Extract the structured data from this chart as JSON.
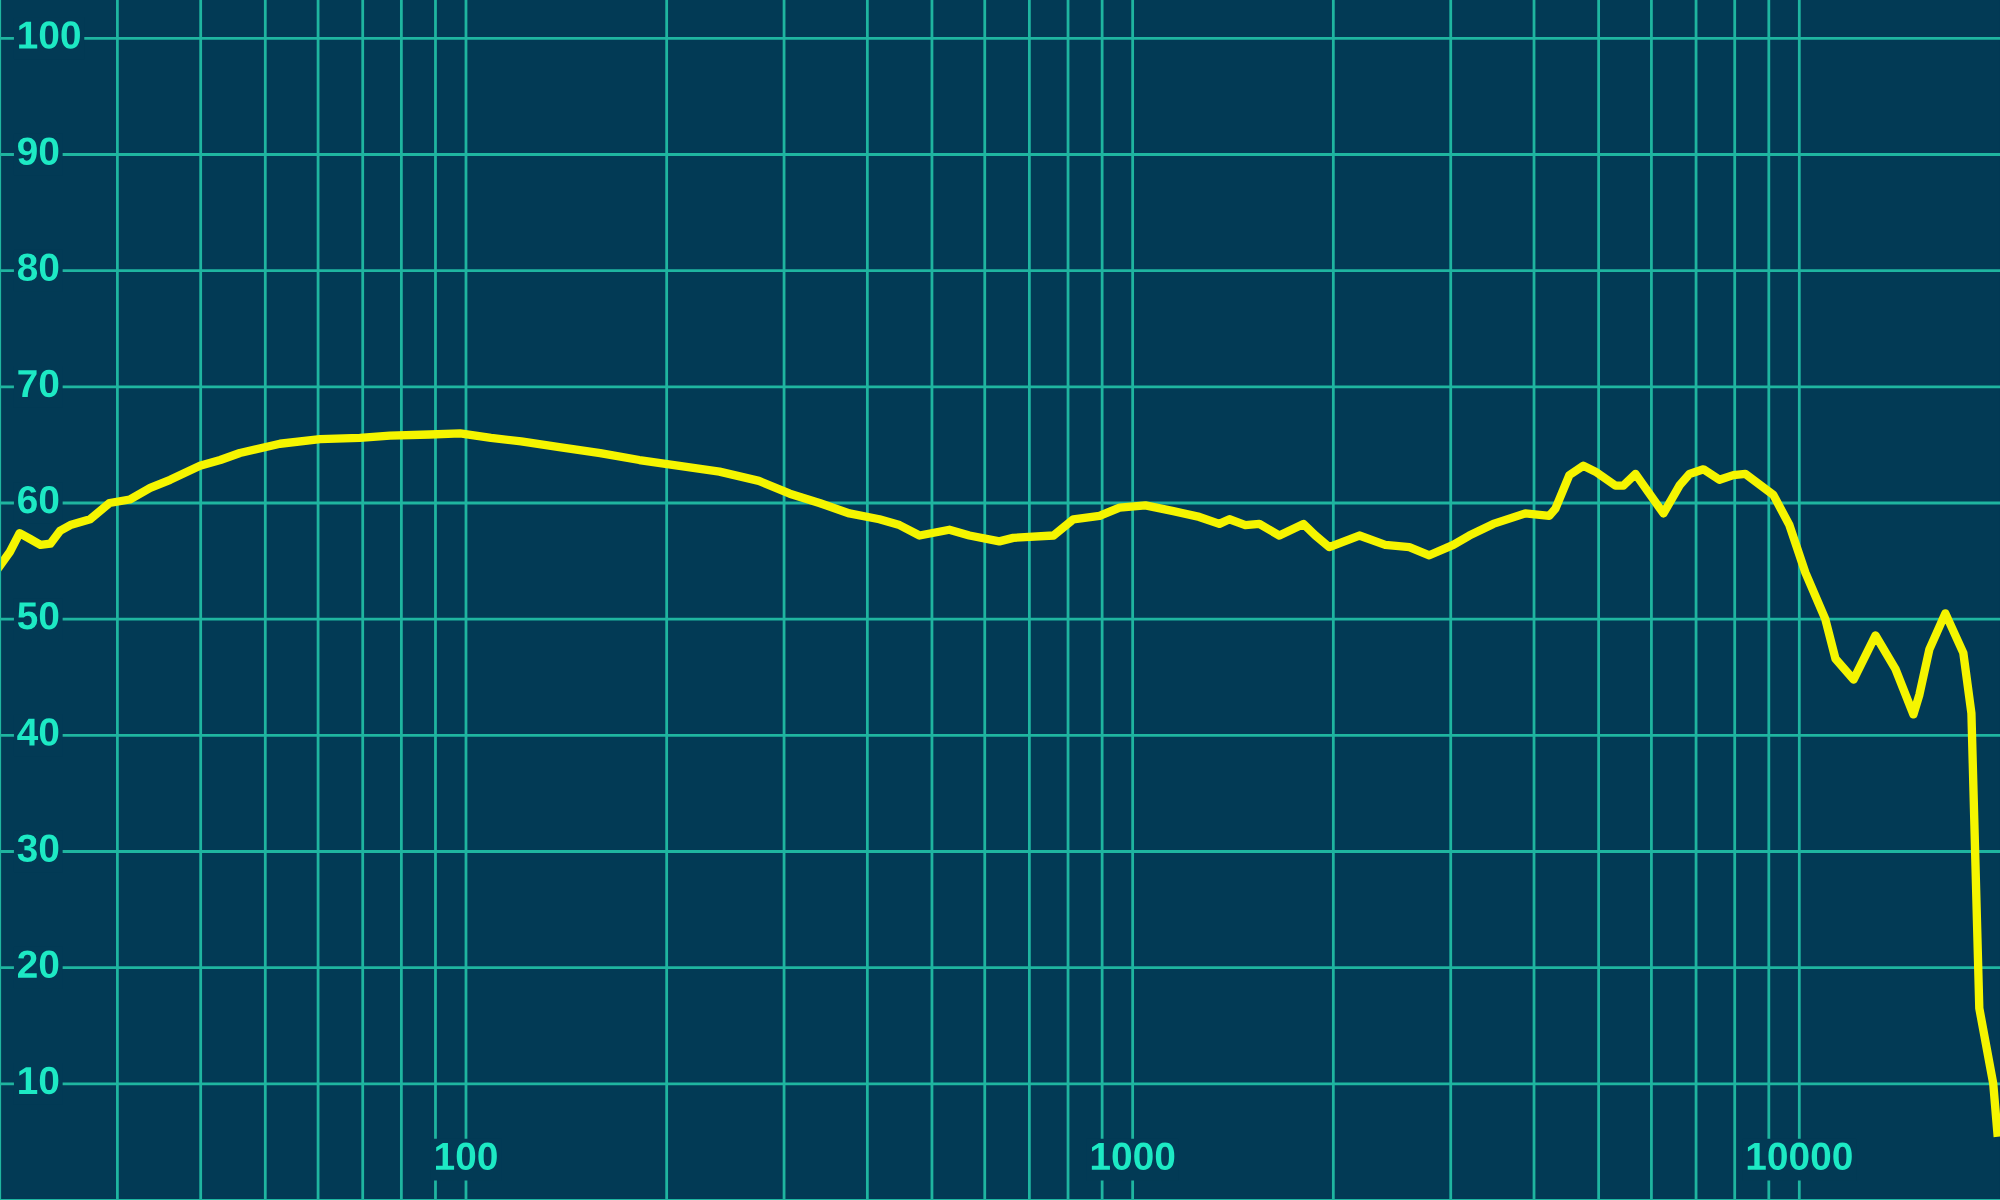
{
  "chart_data": {
    "type": "line",
    "log": "x",
    "grid": true,
    "marker": "none",
    "line_style": "solid",
    "xlim": [
      20,
      20000
    ],
    "ylim": [
      0,
      103.3
    ],
    "xticks": [
      {
        "value": 30,
        "label": null
      },
      {
        "value": 40,
        "label": null
      },
      {
        "value": 50,
        "label": null
      },
      {
        "value": 60,
        "label": null
      },
      {
        "value": 70,
        "label": null
      },
      {
        "value": 80,
        "label": null
      },
      {
        "value": 90,
        "label": null
      },
      100,
      {
        "value": 200,
        "label": null
      },
      {
        "value": 300,
        "label": null
      },
      {
        "value": 400,
        "label": null
      },
      {
        "value": 500,
        "label": null
      },
      {
        "value": 600,
        "label": null
      },
      {
        "value": 700,
        "label": null
      },
      {
        "value": 800,
        "label": null
      },
      {
        "value": 900,
        "label": null
      },
      1000,
      {
        "value": 2000,
        "label": null
      },
      {
        "value": 3000,
        "label": null
      },
      {
        "value": 4000,
        "label": null
      },
      {
        "value": 5000,
        "label": null
      },
      {
        "value": 6000,
        "label": null
      },
      {
        "value": 7000,
        "label": null
      },
      {
        "value": 8000,
        "label": null
      },
      {
        "value": 9000,
        "label": null
      },
      10000
    ],
    "yticks": [
      10,
      20,
      30,
      40,
      50,
      60,
      70,
      80,
      90,
      100
    ],
    "x": [
      20.0,
      20.7,
      21.4,
      22.2,
      23.0,
      23.8,
      24.6,
      25.5,
      27.3,
      29.2,
      31.3,
      33.6,
      36.0,
      39.9,
      42.8,
      45.8,
      52.6,
      60.4,
      69.3,
      76.9,
      88.3,
      98.0,
      109,
      121,
      138,
      159,
      182,
      209,
      240,
      275,
      306,
      339,
      376,
      417,
      447,
      479,
      531,
      569,
      631,
      662,
      761,
      815,
      892,
      956,
      1045,
      1151,
      1259,
      1349,
      1397,
      1476,
      1549,
      1660,
      1804,
      1880,
      1972,
      2188,
      2393,
      2600,
      2786,
      3027,
      3199,
      3475,
      3881,
      4217,
      4306,
      4519,
      4743,
      4946,
      5300,
      5448,
      5678,
      6255,
      6610,
      6842,
      7182,
      7590,
      7962,
      8299,
      9142,
      9663,
      10212,
      10940,
      11330,
      12060,
      13010,
      13940,
      14830,
      15140,
      15670,
      16560,
      17620,
      18120,
      18620,
      19540,
      19820
    ],
    "series": [
      {
        "color": "#f5f500",
        "values": [
          54.6,
          55.8,
          57.4,
          56.9,
          56.4,
          56.5,
          57.6,
          58.1,
          58.6,
          60.0,
          60.3,
          61.3,
          62.0,
          63.2,
          63.7,
          64.3,
          65.1,
          65.5,
          65.6,
          65.8,
          65.9,
          66.0,
          65.6,
          65.3,
          64.8,
          64.3,
          63.7,
          63.2,
          62.7,
          61.9,
          60.8,
          60.0,
          59.1,
          58.6,
          58.1,
          57.2,
          57.7,
          57.2,
          56.7,
          57.0,
          57.2,
          58.6,
          58.9,
          59.6,
          59.8,
          59.3,
          58.8,
          58.2,
          58.6,
          58.1,
          58.2,
          57.2,
          58.2,
          57.2,
          56.2,
          57.2,
          56.4,
          56.2,
          55.5,
          56.4,
          57.2,
          58.2,
          59.1,
          58.9,
          59.5,
          62.4,
          63.2,
          62.7,
          61.5,
          61.5,
          62.5,
          59.1,
          61.5,
          62.5,
          62.9,
          62.0,
          62.4,
          62.5,
          60.7,
          58.1,
          54.0,
          50.0,
          46.6,
          44.8,
          48.6,
          45.7,
          41.8,
          43.5,
          47.4,
          50.5,
          47.1,
          41.9,
          16.5,
          10.0,
          5.8
        ]
      }
    ]
  }
}
